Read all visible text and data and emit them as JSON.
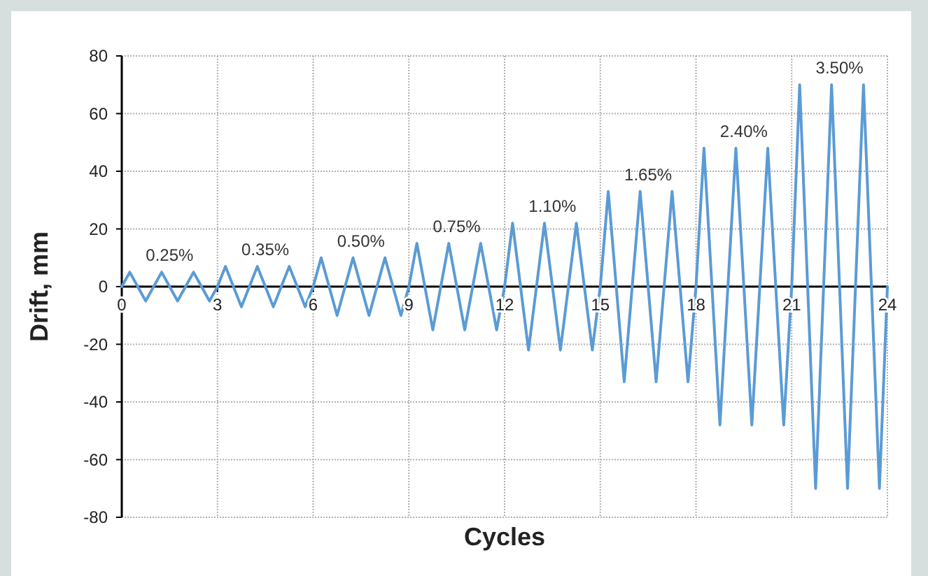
{
  "chart_data": {
    "type": "line",
    "xlabel": "Cycles",
    "ylabel": "Drift, mm",
    "x": [
      0,
      0.25,
      0.5,
      0.75,
      1,
      1.25,
      1.5,
      1.75,
      2,
      2.25,
      2.5,
      2.75,
      3,
      3.25,
      3.5,
      3.75,
      4,
      4.25,
      4.5,
      4.75,
      5,
      5.25,
      5.5,
      5.75,
      6,
      6.25,
      6.5,
      6.75,
      7,
      7.25,
      7.5,
      7.75,
      8,
      8.25,
      8.5,
      8.75,
      9,
      9.25,
      9.5,
      9.75,
      10,
      10.25,
      10.5,
      10.75,
      11,
      11.25,
      11.5,
      11.75,
      12,
      12.25,
      12.5,
      12.75,
      13,
      13.25,
      13.5,
      13.75,
      14,
      14.25,
      14.5,
      14.75,
      15,
      15.25,
      15.5,
      15.75,
      16,
      16.25,
      16.5,
      16.75,
      17,
      17.25,
      17.5,
      17.75,
      18,
      18.25,
      18.5,
      18.75,
      19,
      19.25,
      19.5,
      19.75,
      20,
      20.25,
      20.5,
      20.75,
      21,
      21.25,
      21.5,
      21.75,
      22,
      22.25,
      22.5,
      22.75,
      23,
      23.25,
      23.5,
      23.75,
      24
    ],
    "series": [
      {
        "color": "#5b9bd5",
        "values": [
          0,
          5,
          0,
          -5,
          0,
          5,
          0,
          -5,
          0,
          5,
          0,
          -5,
          0,
          7,
          0,
          -7,
          0,
          7,
          0,
          -7,
          0,
          7,
          0,
          -7,
          0,
          10,
          0,
          -10,
          0,
          10,
          0,
          -10,
          0,
          10,
          0,
          -10,
          0,
          15,
          0,
          -15,
          0,
          15,
          0,
          -15,
          0,
          15,
          0,
          -15,
          0,
          22,
          0,
          -22,
          0,
          22,
          0,
          -22,
          0,
          22,
          0,
          -22,
          0,
          33,
          0,
          -33,
          0,
          33,
          0,
          -33,
          0,
          33,
          0,
          -33,
          0,
          48,
          0,
          -48,
          0,
          48,
          0,
          -48,
          0,
          48,
          0,
          -48,
          0,
          70,
          0,
          -70,
          0,
          70,
          0,
          -70,
          0,
          70,
          0,
          -70,
          0
        ]
      }
    ],
    "xlim": [
      0,
      24
    ],
    "xticks": [
      0,
      3,
      6,
      9,
      12,
      15,
      18,
      21,
      24
    ],
    "ylim": [
      -80,
      80
    ],
    "yticks": [
      -80,
      -60,
      -40,
      -20,
      0,
      20,
      40,
      60,
      80
    ],
    "grid": true,
    "marker": "none",
    "line_style": "solid",
    "annotations": [
      "0.25%",
      "0.35%",
      "0.50%",
      "0.75%",
      "1.10%",
      "1.65%",
      "2.40%",
      "3.50%"
    ]
  }
}
